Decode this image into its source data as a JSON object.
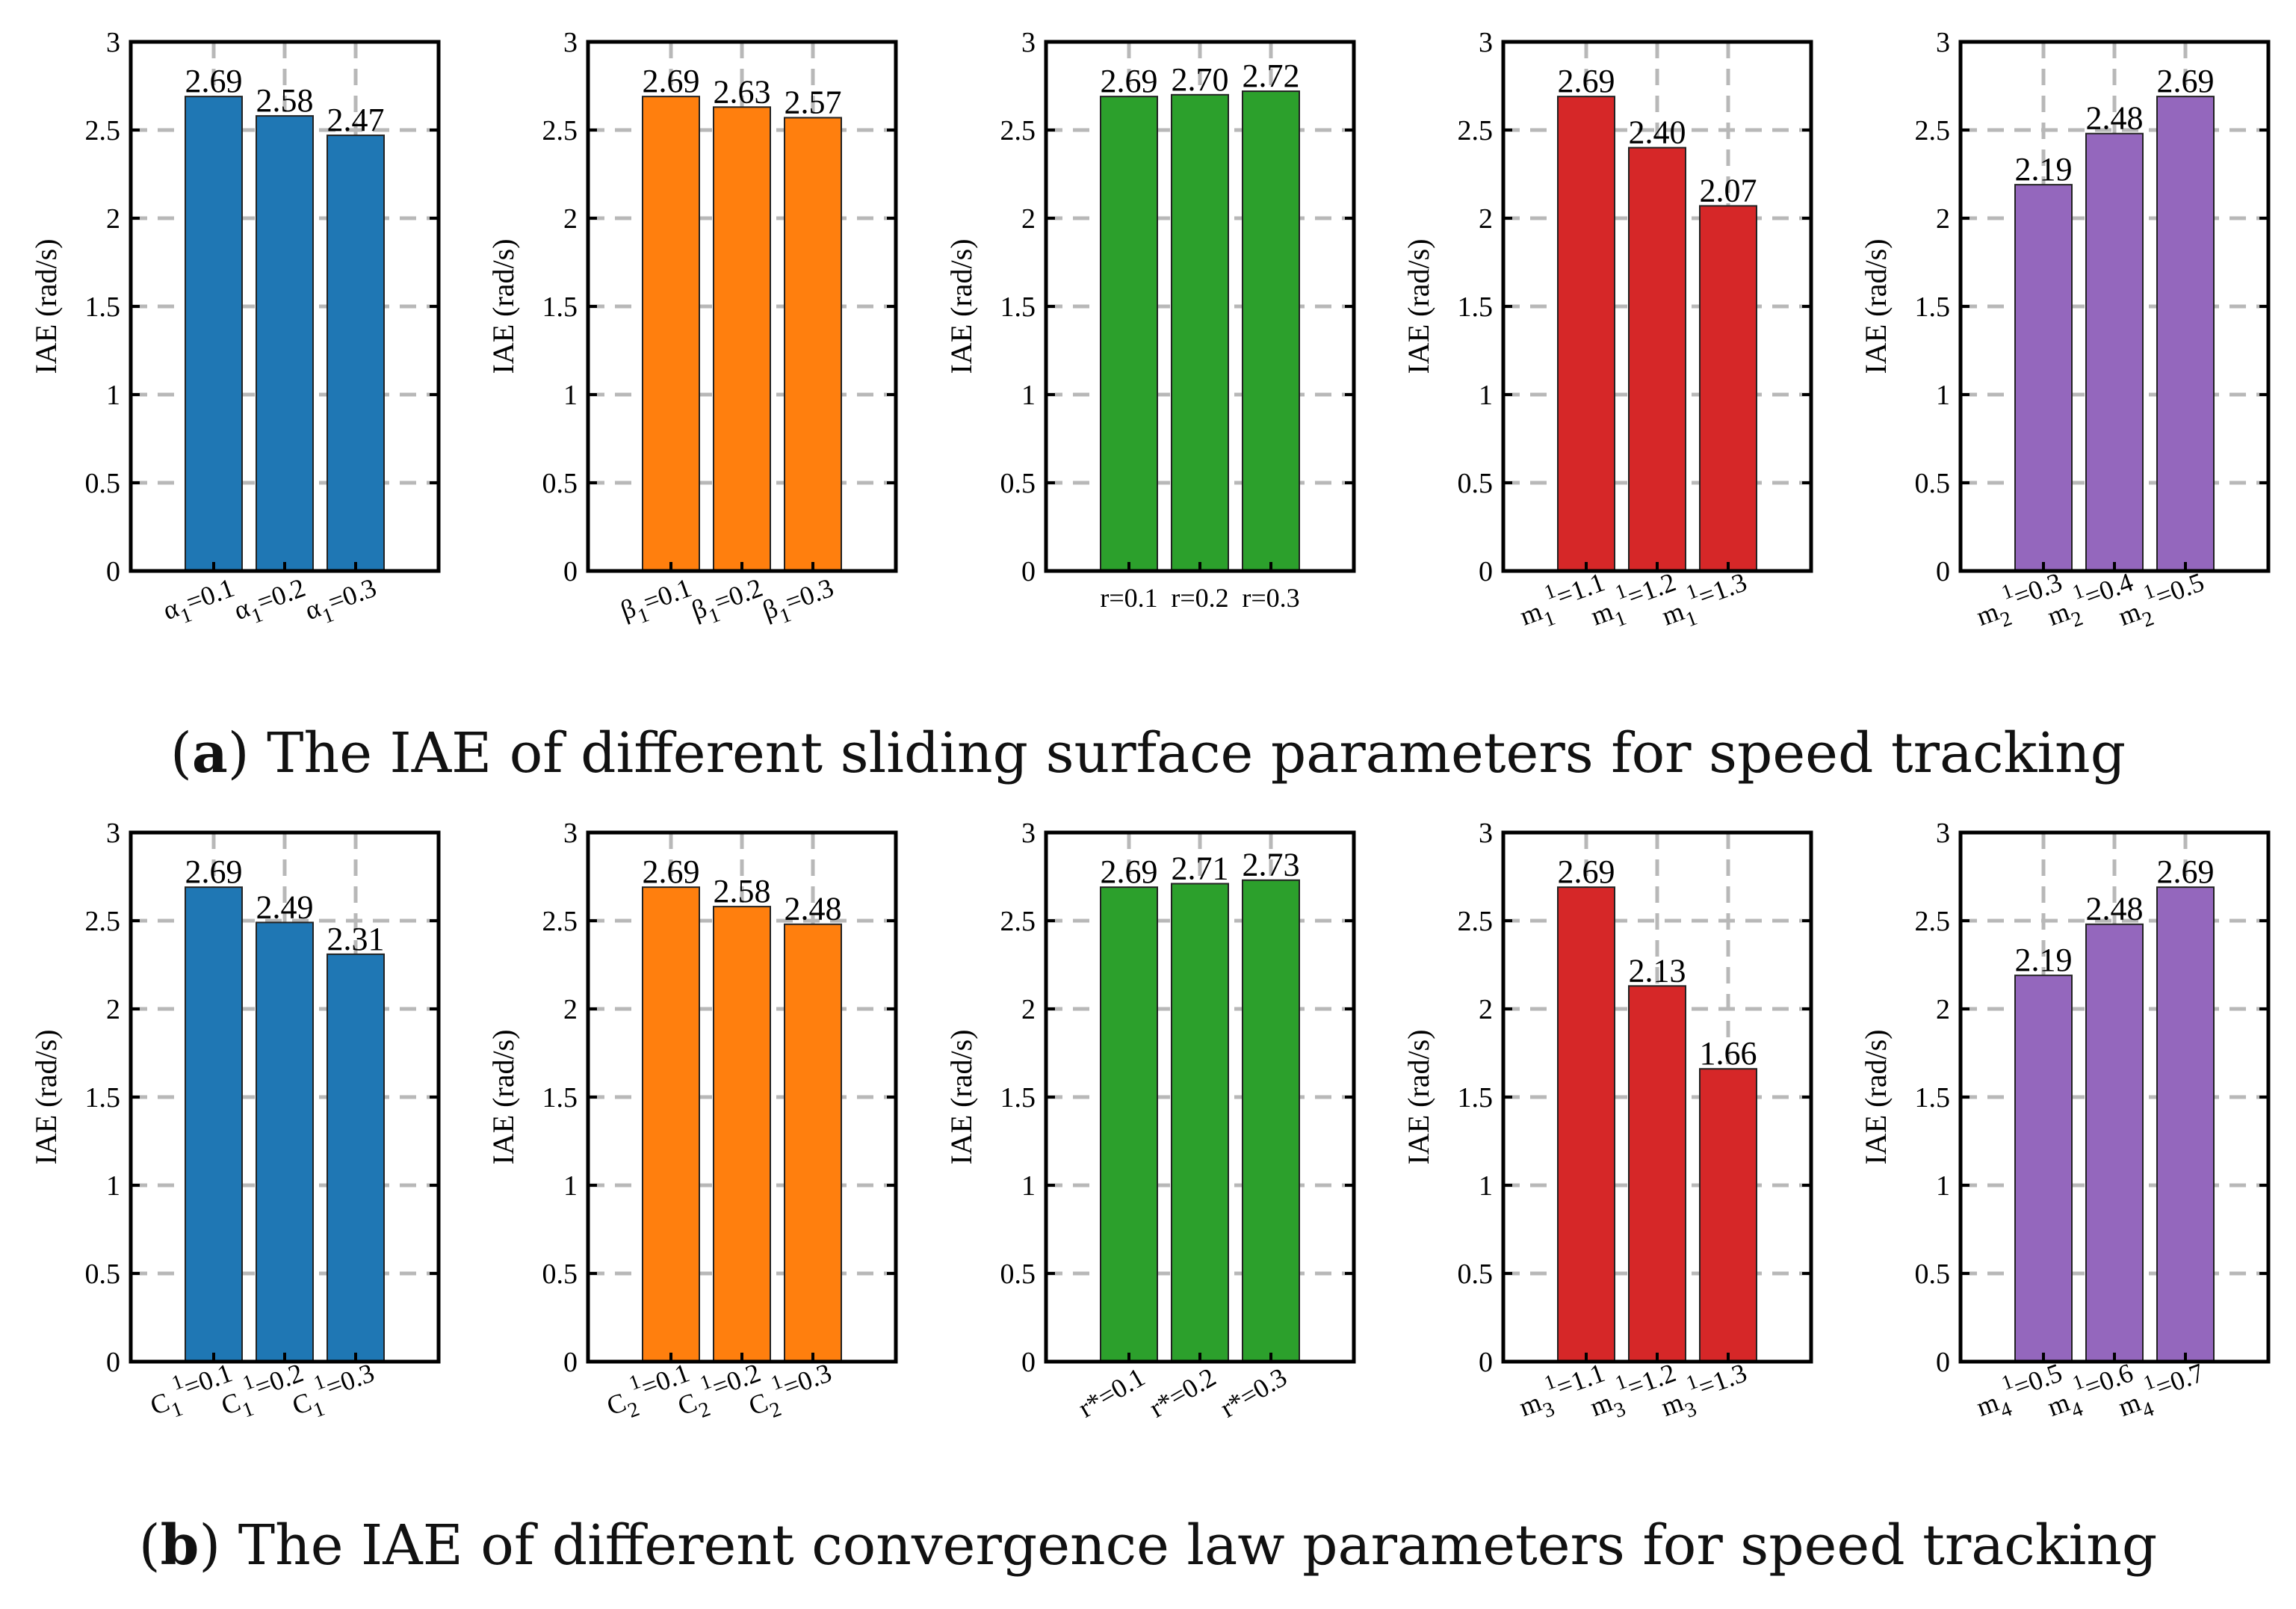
{
  "captions": {
    "a": {
      "open": "(",
      "tag": "a",
      "close": ")",
      "text": "The IAE of different sliding surface parameters for speed tracking"
    },
    "b": {
      "open": "(",
      "tag": "b",
      "close": ")",
      "text": "The IAE of different convergence law parameters for speed tracking"
    }
  },
  "chart_data": [
    {
      "type": "bar",
      "panel": "a1",
      "ylabel": "IAE (rad/s)",
      "ylim": [
        0,
        3
      ],
      "yticks": [
        "0",
        "0.5",
        "1",
        "1.5",
        "2",
        "2.5",
        "3"
      ],
      "grid": true,
      "color": "#1F77B4",
      "categories": [
        {
          "base": "α",
          "sub": "1",
          "sup": "",
          "text": "=0.1"
        },
        {
          "base": "α",
          "sub": "1",
          "sup": "",
          "text": "=0.2"
        },
        {
          "base": "α",
          "sub": "1",
          "sup": "",
          "text": "=0.3"
        }
      ],
      "values": [
        2.69,
        2.58,
        2.47
      ],
      "labels": [
        "2.69",
        "2.58",
        "2.47"
      ]
    },
    {
      "type": "bar",
      "panel": "a2",
      "ylabel": "IAE (rad/s)",
      "ylim": [
        0,
        3
      ],
      "yticks": [
        "0",
        "0.5",
        "1",
        "1.5",
        "2",
        "2.5",
        "3"
      ],
      "grid": true,
      "color": "#FF7F0E",
      "categories": [
        {
          "base": "β",
          "sub": "1",
          "sup": "",
          "text": "=0.1"
        },
        {
          "base": "β",
          "sub": "1",
          "sup": "",
          "text": "=0.2"
        },
        {
          "base": "β",
          "sub": "1",
          "sup": "",
          "text": "=0.3"
        }
      ],
      "values": [
        2.69,
        2.63,
        2.57
      ],
      "labels": [
        "2.69",
        "2.63",
        "2.57"
      ]
    },
    {
      "type": "bar",
      "panel": "a3",
      "ylabel": "IAE (rad/s)",
      "ylim": [
        0,
        3
      ],
      "yticks": [
        "0",
        "0.5",
        "1",
        "1.5",
        "2",
        "2.5",
        "3"
      ],
      "grid": true,
      "color": "#2CA02C",
      "categories": [
        {
          "base": "",
          "sub": "",
          "sup": "",
          "text": "r=0.1"
        },
        {
          "base": "",
          "sub": "",
          "sup": "",
          "text": "r=0.2"
        },
        {
          "base": "",
          "sub": "",
          "sup": "",
          "text": "r=0.3"
        }
      ],
      "values": [
        2.69,
        2.7,
        2.72
      ],
      "labels": [
        "2.69",
        "2.70",
        "2.72"
      ]
    },
    {
      "type": "bar",
      "panel": "a4",
      "ylabel": "IAE (rad/s)",
      "ylim": [
        0,
        3
      ],
      "yticks": [
        "0",
        "0.5",
        "1",
        "1.5",
        "2",
        "2.5",
        "3"
      ],
      "grid": true,
      "color": "#D62728",
      "categories": [
        {
          "base": "m",
          "sub": "1",
          "sup": "1",
          "text": "=1.1"
        },
        {
          "base": "m",
          "sub": "1",
          "sup": "1",
          "text": "=1.2"
        },
        {
          "base": "m",
          "sub": "1",
          "sup": "1",
          "text": "=1.3"
        }
      ],
      "values": [
        2.69,
        2.4,
        2.07
      ],
      "labels": [
        "2.69",
        "2.40",
        "2.07"
      ]
    },
    {
      "type": "bar",
      "panel": "a5",
      "ylabel": "IAE (rad/s)",
      "ylim": [
        0,
        3
      ],
      "yticks": [
        "0",
        "0.5",
        "1",
        "1.5",
        "2",
        "2.5",
        "3"
      ],
      "grid": true,
      "color": "#9467BD",
      "categories": [
        {
          "base": "m",
          "sub": "2",
          "sup": "1",
          "text": "=0.3"
        },
        {
          "base": "m",
          "sub": "2",
          "sup": "1",
          "text": "=0.4"
        },
        {
          "base": "m",
          "sub": "2",
          "sup": "1",
          "text": "=0.5"
        }
      ],
      "values": [
        2.19,
        2.48,
        2.69
      ],
      "labels": [
        "2.19",
        "2.48",
        "2.69"
      ]
    },
    {
      "type": "bar",
      "panel": "b1",
      "ylabel": "IAE (rad/s)",
      "ylim": [
        0,
        3
      ],
      "yticks": [
        "0",
        "0.5",
        "1",
        "1.5",
        "2",
        "2.5",
        "3"
      ],
      "grid": true,
      "color": "#1F77B4",
      "categories": [
        {
          "base": "C",
          "sub": "1",
          "sup": "1",
          "text": "=0.1"
        },
        {
          "base": "C",
          "sub": "1",
          "sup": "1",
          "text": "=0.2"
        },
        {
          "base": "C",
          "sub": "1",
          "sup": "1",
          "text": "=0.3"
        }
      ],
      "values": [
        2.69,
        2.49,
        2.31
      ],
      "labels": [
        "2.69",
        "2.49",
        "2.31"
      ]
    },
    {
      "type": "bar",
      "panel": "b2",
      "ylabel": "IAE (rad/s)",
      "ylim": [
        0,
        3
      ],
      "yticks": [
        "0",
        "0.5",
        "1",
        "1.5",
        "2",
        "2.5",
        "3"
      ],
      "grid": true,
      "color": "#FF7F0E",
      "categories": [
        {
          "base": "C",
          "sub": "2",
          "sup": "1",
          "text": "=0.1"
        },
        {
          "base": "C",
          "sub": "2",
          "sup": "1",
          "text": "=0.2"
        },
        {
          "base": "C",
          "sub": "2",
          "sup": "1",
          "text": "=0.3"
        }
      ],
      "values": [
        2.69,
        2.58,
        2.48
      ],
      "labels": [
        "2.69",
        "2.58",
        "2.48"
      ]
    },
    {
      "type": "bar",
      "panel": "b3",
      "ylabel": "IAE (rad/s)",
      "ylim": [
        0,
        3
      ],
      "yticks": [
        "0",
        "0.5",
        "1",
        "1.5",
        "2",
        "2.5",
        "3"
      ],
      "grid": true,
      "color": "#2CA02C",
      "categories": [
        {
          "base": "",
          "sub": "",
          "sup": "",
          "text": "r*=0.1"
        },
        {
          "base": "",
          "sub": "",
          "sup": "",
          "text": "r*=0.2"
        },
        {
          "base": "",
          "sub": "",
          "sup": "",
          "text": "r*=0.3"
        }
      ],
      "values": [
        2.69,
        2.71,
        2.73
      ],
      "labels": [
        "2.69",
        "2.71",
        "2.73"
      ]
    },
    {
      "type": "bar",
      "panel": "b4",
      "ylabel": "IAE (rad/s)",
      "ylim": [
        0,
        3
      ],
      "yticks": [
        "0",
        "0.5",
        "1",
        "1.5",
        "2",
        "2.5",
        "3"
      ],
      "grid": true,
      "color": "#D62728",
      "categories": [
        {
          "base": "m",
          "sub": "3",
          "sup": "1",
          "text": "=1.1"
        },
        {
          "base": "m",
          "sub": "3",
          "sup": "1",
          "text": "=1.2"
        },
        {
          "base": "m",
          "sub": "3",
          "sup": "1",
          "text": "=1.3"
        }
      ],
      "values": [
        2.69,
        2.13,
        1.66
      ],
      "labels": [
        "2.69",
        "2.13",
        "1.66"
      ]
    },
    {
      "type": "bar",
      "panel": "b5",
      "ylabel": "IAE (rad/s)",
      "ylim": [
        0,
        3
      ],
      "yticks": [
        "0",
        "0.5",
        "1",
        "1.5",
        "2",
        "2.5",
        "3"
      ],
      "grid": true,
      "color": "#9467BD",
      "categories": [
        {
          "base": "m",
          "sub": "4",
          "sup": "1",
          "text": "=0.5"
        },
        {
          "base": "m",
          "sub": "4",
          "sup": "1",
          "text": "=0.6"
        },
        {
          "base": "m",
          "sub": "4",
          "sup": "1",
          "text": "=0.7"
        }
      ],
      "values": [
        2.19,
        2.48,
        2.69
      ],
      "labels": [
        "2.19",
        "2.48",
        "2.69"
      ]
    }
  ]
}
